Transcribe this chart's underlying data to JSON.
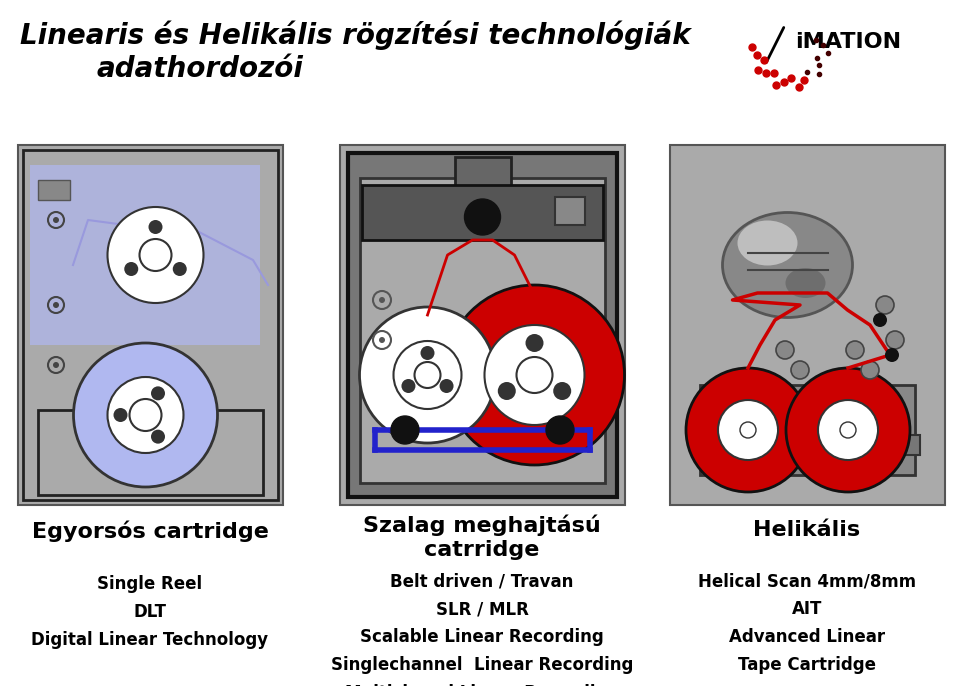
{
  "title_line1": "Linearis és Helikális rögzítési technológiák",
  "title_line2": "adathordozói",
  "title_fontsize": 20,
  "title_style": "italic",
  "title_weight": "bold",
  "bg_color": "#ffffff",
  "panel_bg": "#aaaaaa",
  "col1_heading": "Egyorsós cartridge",
  "col2_heading": "Szalag meghajtású\ncatrridge",
  "col3_heading": "Helikális",
  "col1_lines": [
    "Single Reel",
    "DLT",
    "Digital Linear Technology"
  ],
  "col2_lines": [
    "Belt driven / Travan",
    "SLR / MLR",
    "Scalable Linear Recording",
    "Singlechannel  Linear Recording",
    "Multichanel Linear Recording"
  ],
  "col3_lines": [
    "Helical Scan 4mm/8mm",
    "AIT",
    "Advanced Linear",
    "Tape Cartridge"
  ],
  "heading_fontsize": 16,
  "sub_fontsize": 12
}
